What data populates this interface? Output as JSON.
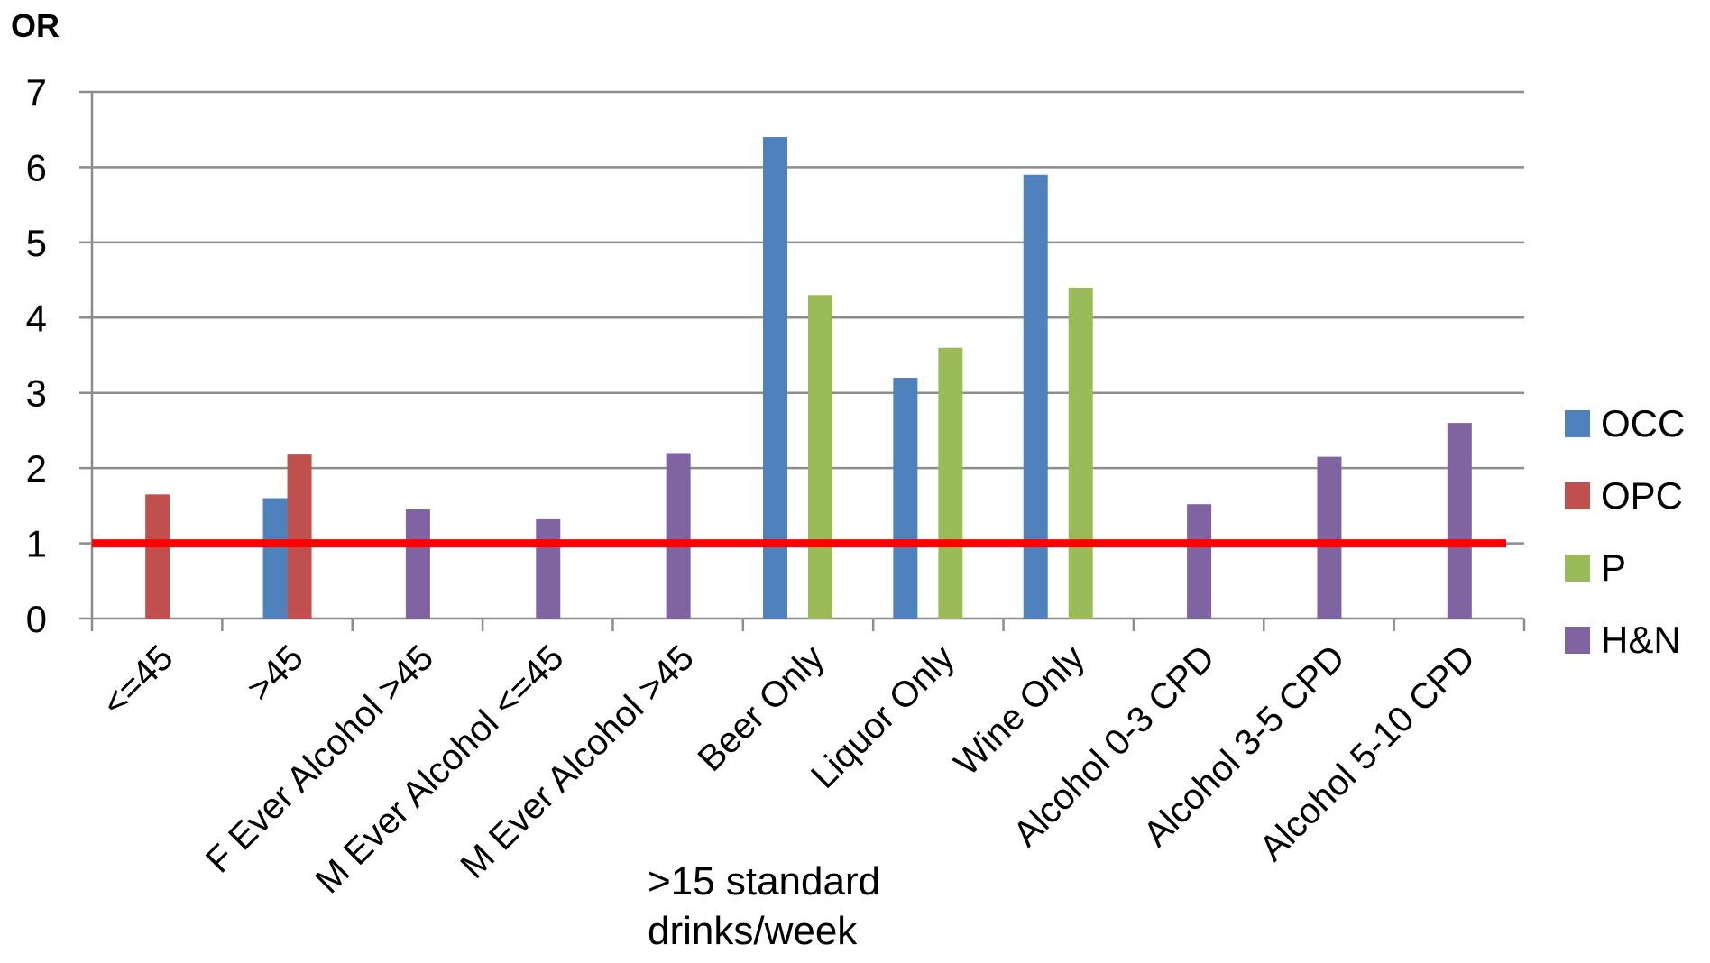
{
  "chart_data": {
    "type": "bar",
    "ylabel": "OR",
    "ylim": [
      0,
      7
    ],
    "yticks": [
      0,
      1,
      2,
      3,
      4,
      5,
      6,
      7
    ],
    "grid": true,
    "legend_position": "right",
    "categories": [
      "<=45",
      ">45",
      "F Ever Alcohol >45",
      "M Ever Alcohol <=45",
      "M Ever Alcohol >45",
      "Beer Only",
      "Liquor Only",
      "Wine Only",
      "Alcohol 0-3 CPD",
      "Alcohol 3-5 CPD",
      "Alcohol 5-10 CPD"
    ],
    "series": [
      {
        "name": "OCC",
        "color": "#4F81BD",
        "values": [
          null,
          1.6,
          null,
          null,
          null,
          6.4,
          3.2,
          5.9,
          null,
          null,
          null
        ]
      },
      {
        "name": "OPC",
        "color": "#C0504D",
        "values": [
          1.65,
          2.18,
          null,
          null,
          null,
          null,
          null,
          null,
          null,
          null,
          null
        ]
      },
      {
        "name": "P",
        "color": "#9BBB59",
        "values": [
          null,
          null,
          null,
          null,
          null,
          4.3,
          3.6,
          4.4,
          null,
          null,
          null
        ]
      },
      {
        "name": "H&N",
        "color": "#8064A2",
        "values": [
          null,
          null,
          1.45,
          1.32,
          2.2,
          null,
          null,
          null,
          1.52,
          2.15,
          2.6
        ]
      }
    ],
    "reference_line": {
      "value": 1,
      "color": "#FF0000"
    },
    "annotation": ">15 standard drinks/week"
  }
}
